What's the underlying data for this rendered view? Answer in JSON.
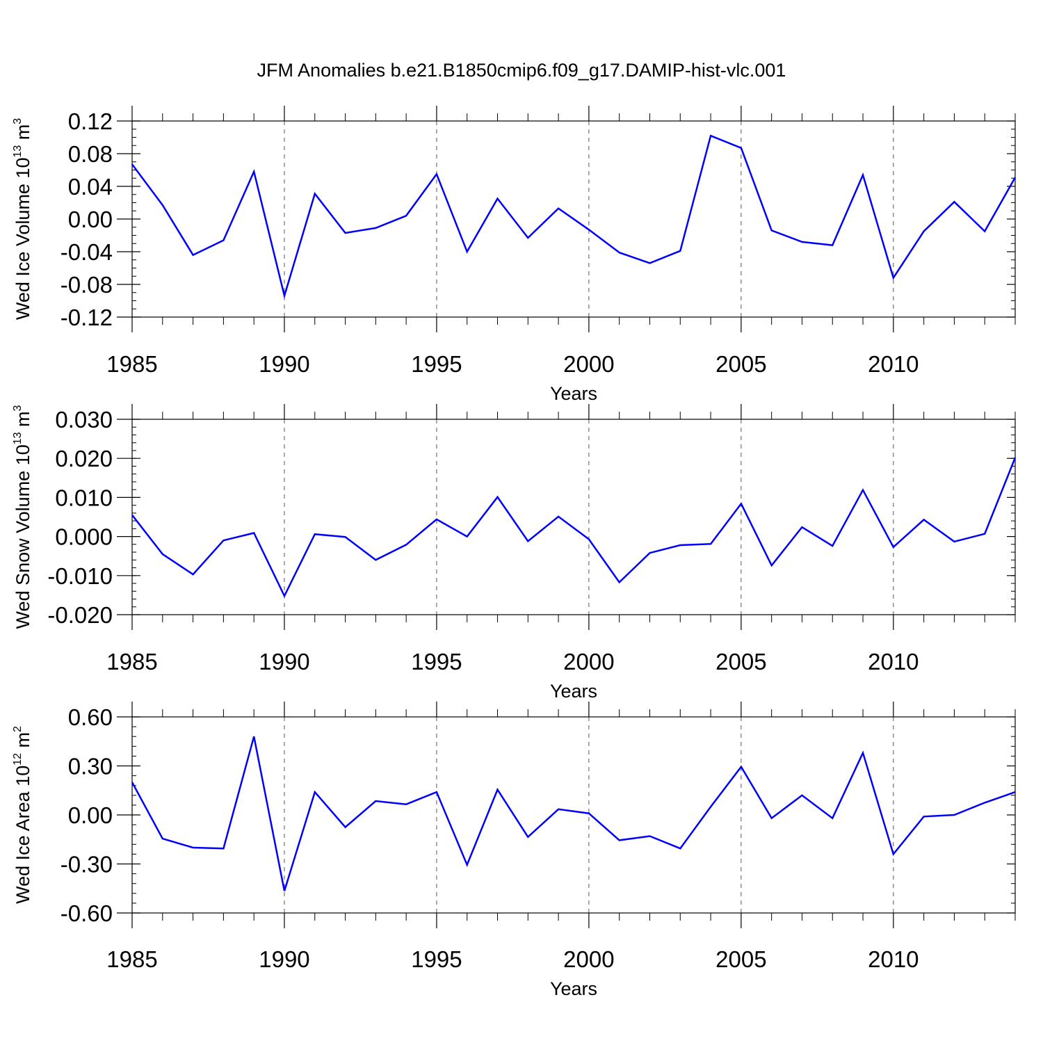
{
  "title": "JFM Anomalies b.e21.B1850cmip6.f09_g17.DAMIP-hist-vlc.001",
  "line_color": "#0000ff",
  "chart_data": [
    {
      "type": "line",
      "ylabel": "Wed Ice Volume 10",
      "ylabel_exp": "13",
      "ylabel_unit": " m",
      "ylabel_unit_exp": "3",
      "xlabel": "Years",
      "xlim": [
        1985,
        2014
      ],
      "ylim": [
        -0.12,
        0.12
      ],
      "yticks": [
        -0.12,
        -0.08,
        -0.04,
        0.0,
        0.04,
        0.08,
        0.12
      ],
      "ytick_labels": [
        "-0.12",
        "-0.08",
        "-0.04",
        "0.00",
        "0.04",
        "0.08",
        "0.12"
      ],
      "yminor_step": 0.01,
      "xticks": [
        1985,
        1990,
        1995,
        2000,
        2005,
        2010
      ],
      "xtick_labels": [
        "1985",
        "1990",
        "1995",
        "2000",
        "2005",
        "2010"
      ],
      "grid_x": [
        1990,
        1995,
        2000,
        2005,
        2010
      ],
      "x": [
        1985,
        1986,
        1987,
        1988,
        1989,
        1990,
        1991,
        1992,
        1993,
        1994,
        1995,
        1996,
        1997,
        1998,
        1999,
        2000,
        2001,
        2002,
        2003,
        2004,
        2005,
        2006,
        2007,
        2008,
        2009,
        2010,
        2011,
        2012,
        2013,
        2014
      ],
      "values": [
        0.067,
        0.017,
        -0.044,
        -0.026,
        0.058,
        -0.094,
        0.031,
        -0.017,
        -0.011,
        0.004,
        0.055,
        -0.04,
        0.025,
        -0.023,
        0.013,
        -0.013,
        -0.041,
        -0.054,
        -0.039,
        0.102,
        0.087,
        -0.014,
        -0.028,
        -0.032,
        0.054,
        -0.072,
        -0.015,
        0.021,
        -0.015,
        0.051
      ]
    },
    {
      "type": "line",
      "ylabel": "Wed Snow Volume 10",
      "ylabel_exp": "13",
      "ylabel_unit": " m",
      "ylabel_unit_exp": "3",
      "xlabel": "Years",
      "xlim": [
        1985,
        2014
      ],
      "ylim": [
        -0.02,
        0.03
      ],
      "yticks": [
        -0.02,
        -0.01,
        0.0,
        0.01,
        0.02,
        0.03
      ],
      "ytick_labels": [
        "-0.020",
        "-0.010",
        "0.000",
        "0.010",
        "0.020",
        "0.030"
      ],
      "yminor_step": 0.002,
      "xticks": [
        1985,
        1990,
        1995,
        2000,
        2005,
        2010
      ],
      "xtick_labels": [
        "1985",
        "1990",
        "1995",
        "2000",
        "2005",
        "2010"
      ],
      "grid_x": [
        1990,
        1995,
        2000,
        2005,
        2010
      ],
      "x": [
        1985,
        1986,
        1987,
        1988,
        1989,
        1990,
        1991,
        1992,
        1993,
        1994,
        1995,
        1996,
        1997,
        1998,
        1999,
        2000,
        2001,
        2002,
        2003,
        2004,
        2005,
        2006,
        2007,
        2008,
        2009,
        2010,
        2011,
        2012,
        2013,
        2014
      ],
      "values": [
        0.0055,
        -0.0045,
        -0.0097,
        -0.001,
        0.0009,
        -0.0152,
        0.0006,
        -0.0001,
        -0.006,
        -0.0021,
        0.0044,
        0.0,
        0.0101,
        -0.0012,
        0.0051,
        -0.0007,
        -0.0117,
        -0.0042,
        -0.0022,
        -0.0019,
        0.0084,
        -0.0074,
        0.0024,
        -0.0024,
        0.0119,
        -0.0027,
        0.0043,
        -0.0013,
        0.0007,
        0.0202
      ]
    },
    {
      "type": "line",
      "ylabel": "Wed Ice Area 10",
      "ylabel_exp": "12",
      "ylabel_unit": " m",
      "ylabel_unit_exp": "2",
      "xlabel": "Years",
      "xlim": [
        1985,
        2014
      ],
      "ylim": [
        -0.6,
        0.6
      ],
      "yticks": [
        -0.6,
        -0.3,
        0.0,
        0.3,
        0.6
      ],
      "ytick_labels": [
        "-0.60",
        "-0.30",
        "0.00",
        "0.30",
        "0.60"
      ],
      "yminor_step": 0.06,
      "xticks": [
        1985,
        1990,
        1995,
        2000,
        2005,
        2010
      ],
      "xtick_labels": [
        "1985",
        "1990",
        "1995",
        "2000",
        "2005",
        "2010"
      ],
      "grid_x": [
        1990,
        1995,
        2000,
        2005,
        2010
      ],
      "x": [
        1985,
        1986,
        1987,
        1988,
        1989,
        1990,
        1991,
        1992,
        1993,
        1994,
        1995,
        1996,
        1997,
        1998,
        1999,
        2000,
        2001,
        2002,
        2003,
        2004,
        2005,
        2006,
        2007,
        2008,
        2009,
        2010,
        2011,
        2012,
        2013,
        2014
      ],
      "values": [
        0.2,
        -0.145,
        -0.2,
        -0.205,
        0.48,
        -0.465,
        0.14,
        -0.075,
        0.085,
        0.065,
        0.14,
        -0.305,
        0.155,
        -0.135,
        0.035,
        0.01,
        -0.155,
        -0.13,
        -0.205,
        0.05,
        0.295,
        -0.02,
        0.12,
        -0.02,
        0.38,
        -0.24,
        -0.01,
        0.0,
        0.075,
        0.14
      ]
    }
  ]
}
